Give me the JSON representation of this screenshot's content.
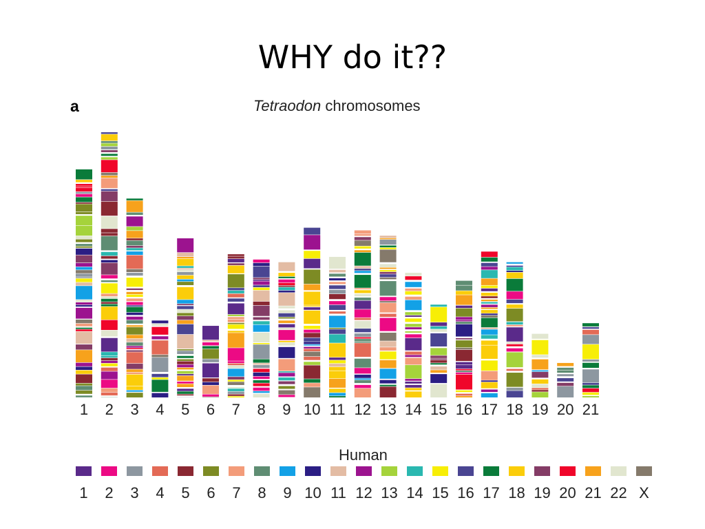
{
  "slide_title": "WHY do it??",
  "figure": {
    "panel_letter": "a",
    "heading_italic": "Tetraodon",
    "heading_rest": " chromosomes",
    "legend_title": "Human"
  },
  "tetraodon_chromosomes": [
    "1",
    "2",
    "3",
    "4",
    "5",
    "6",
    "7",
    "8",
    "9",
    "10",
    "11",
    "12",
    "13",
    "14",
    "15",
    "16",
    "17",
    "18",
    "19",
    "20",
    "21"
  ],
  "tetraodon_relative_lengths": [
    0.86,
    1.0,
    0.75,
    0.29,
    0.6,
    0.27,
    0.54,
    0.52,
    0.51,
    0.64,
    0.53,
    0.63,
    0.61,
    0.47,
    0.35,
    0.44,
    0.55,
    0.51,
    0.24,
    0.13,
    0.28
  ],
  "human_legend": [
    {
      "label": "1",
      "color": "#5a2a8a"
    },
    {
      "label": "2",
      "color": "#ec0a84"
    },
    {
      "label": "3",
      "color": "#8d97a0"
    },
    {
      "label": "4",
      "color": "#e36a56"
    },
    {
      "label": "5",
      "color": "#8a2832"
    },
    {
      "label": "6",
      "color": "#7d8b24"
    },
    {
      "label": "7",
      "color": "#f39c7a"
    },
    {
      "label": "8",
      "color": "#5f8d73"
    },
    {
      "label": "9",
      "color": "#13a1e6"
    },
    {
      "label": "10",
      "color": "#2b1e84"
    },
    {
      "label": "11",
      "color": "#e3bca4"
    },
    {
      "label": "12",
      "color": "#9c138f"
    },
    {
      "label": "13",
      "color": "#a5d33b"
    },
    {
      "label": "14",
      "color": "#2ab8b0"
    },
    {
      "label": "15",
      "color": "#f7ee06"
    },
    {
      "label": "16",
      "color": "#4a4592"
    },
    {
      "label": "17",
      "color": "#0a7b3a"
    },
    {
      "label": "18",
      "color": "#fbcd0a"
    },
    {
      "label": "19",
      "color": "#843c66"
    },
    {
      "label": "20",
      "color": "#f0062a"
    },
    {
      "label": "21",
      "color": "#f7a21c"
    },
    {
      "label": "22",
      "color": "#e1e6cf"
    },
    {
      "label": "X",
      "color": "#857a6b"
    }
  ]
}
